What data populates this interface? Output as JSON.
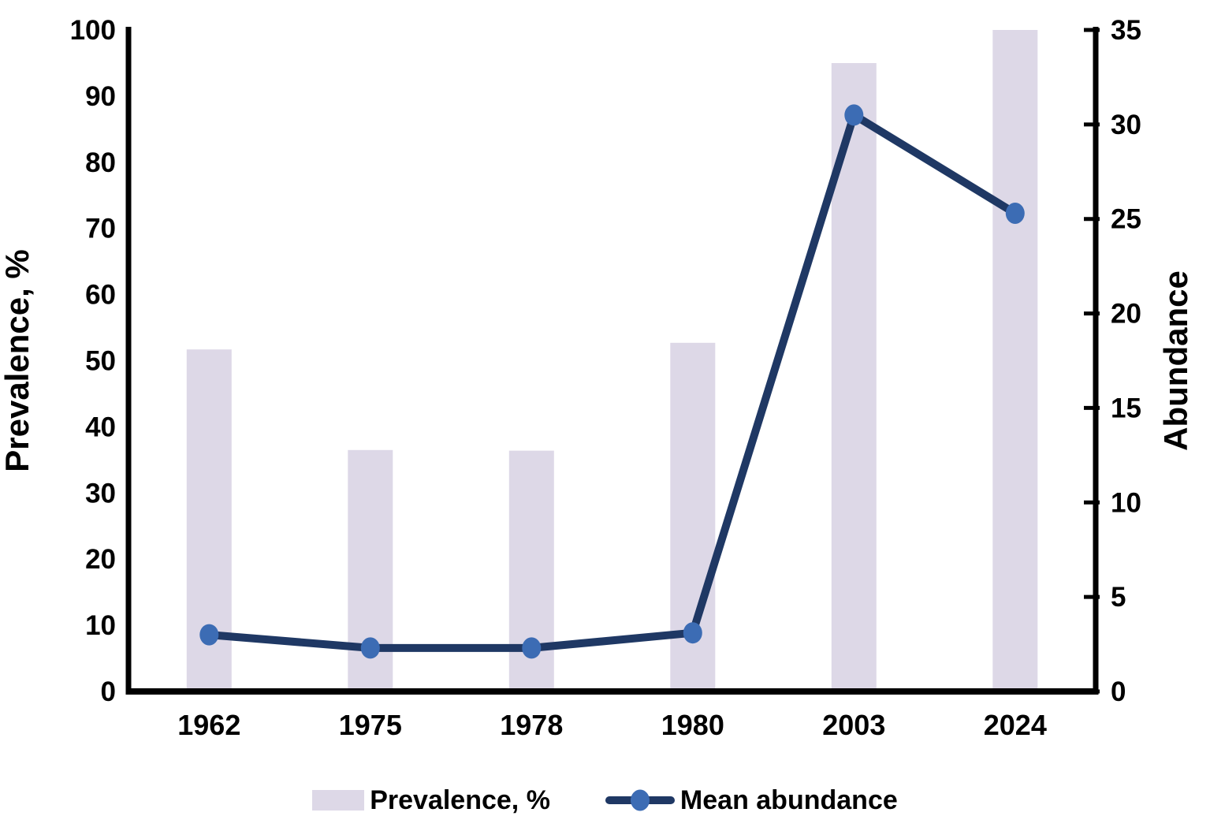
{
  "chart_data": {
    "type": "combo-bar-line",
    "categories": [
      "1962",
      "1975",
      "1978",
      "1980",
      "2003",
      "2024"
    ],
    "series": [
      {
        "name": "Prevalence, %",
        "type": "bar",
        "axis": "left",
        "values": [
          51.7,
          36.5,
          36.4,
          52.7,
          95,
          100
        ]
      },
      {
        "name": "Mean abundance",
        "type": "line",
        "axis": "right",
        "values": [
          3.0,
          2.3,
          2.3,
          3.1,
          30.5,
          25.3
        ]
      }
    ],
    "left_axis": {
      "title": "Prevalence, %",
      "min": 0,
      "max": 100,
      "step": 10,
      "tick_labels": [
        "0",
        "10",
        "20",
        "30",
        "40",
        "50",
        "60",
        "70",
        "80",
        "90",
        "100"
      ]
    },
    "right_axis": {
      "title": "Abundance",
      "min": 0,
      "max": 35,
      "step": 5,
      "tick_labels": [
        "0",
        "5",
        "10",
        "15",
        "20",
        "25",
        "30",
        "35"
      ]
    },
    "grid": false,
    "legend_position": "bottom",
    "title": ""
  },
  "legend": {
    "items": [
      {
        "label": "Prevalence, %",
        "swatch": "bar"
      },
      {
        "label": "Mean abundance",
        "swatch": "line-marker"
      }
    ]
  },
  "colors": {
    "bar": "#DDD8E7",
    "line": "#1F3864",
    "marker": "#3C6CB4",
    "axis": "#000000",
    "text": "#000000",
    "background": "#FFFFFF"
  }
}
